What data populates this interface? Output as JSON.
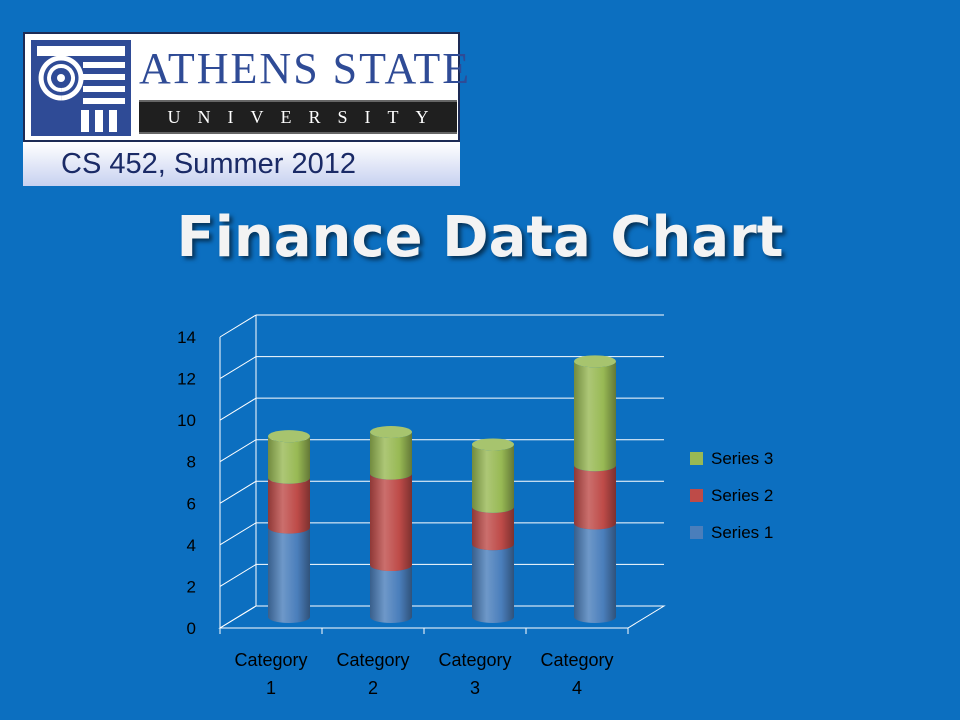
{
  "logo": {
    "name": "ATHENS STATE",
    "subname": "UNIVERSITY",
    "course": "CS 452, Summer 2012"
  },
  "slide": {
    "title": "Finance Data Chart"
  },
  "colors": {
    "background": "#0c6fc0",
    "series_1": "#4a7ebb",
    "series_2": "#be4b48",
    "series_3": "#98b954"
  },
  "chart_data": {
    "type": "bar",
    "stacked": true,
    "style": "3d-cylinder",
    "categories": [
      [
        "Category",
        "1"
      ],
      [
        "Category",
        "2"
      ],
      [
        "Category",
        "3"
      ],
      [
        "Category",
        "4"
      ]
    ],
    "series": [
      {
        "name": "Series 1",
        "values": [
          4.3,
          2.5,
          3.5,
          4.5
        ]
      },
      {
        "name": "Series 2",
        "values": [
          2.4,
          4.4,
          1.8,
          2.8
        ]
      },
      {
        "name": "Series 3",
        "values": [
          2.0,
          2.0,
          3.0,
          5.0
        ]
      }
    ],
    "yticks": [
      "0",
      "2",
      "4",
      "6",
      "8",
      "10",
      "12",
      "14"
    ],
    "ylim": [
      0,
      14
    ],
    "gridlines": true,
    "legend_position": "right",
    "title": "",
    "xlabel": "",
    "ylabel": ""
  }
}
